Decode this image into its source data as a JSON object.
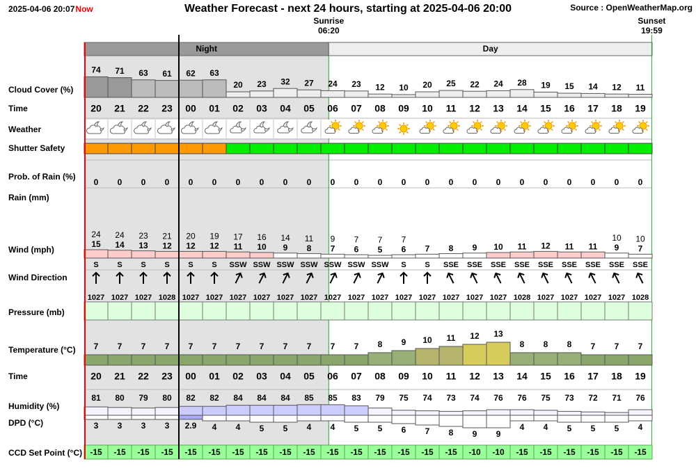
{
  "header": {
    "timestamp": "2025-04-06 20:07",
    "now": "Now",
    "title": "Weather Forecast - next 24 hours, starting at 2025-04-06 20:00",
    "source": "Source : OpenWeatherMap.org"
  },
  "sun": {
    "sunrise_label": "Sunrise",
    "sunrise": "06:20",
    "sunset_label": "Sunset",
    "sunset": "19:59"
  },
  "periods": {
    "night": "Night",
    "day": "Day"
  },
  "labels": {
    "cloud_cover": "Cloud Cover (%)",
    "time": "Time",
    "weather": "Weather",
    "shutter_safety": "Shutter Safety",
    "prob_rain": "Prob. of Rain (%)",
    "rain": "Rain (mm)",
    "wind": "Wind (mph)",
    "wind_direction": "Wind Direction",
    "pressure": "Pressure (mb)",
    "temperature": "Temperature (°C)",
    "time2": "Time",
    "humidity": "Humidity (%)",
    "dpd": "DPD (°C)",
    "ccd": "CCD Set Point (°C)"
  },
  "time": [
    "20",
    "21",
    "22",
    "23",
    "00",
    "01",
    "02",
    "03",
    "04",
    "05",
    "06",
    "07",
    "08",
    "09",
    "10",
    "11",
    "12",
    "13",
    "14",
    "15",
    "16",
    "17",
    "18",
    "19"
  ],
  "cloud_cover": [
    74,
    71,
    63,
    61,
    62,
    63,
    20,
    23,
    32,
    27,
    24,
    23,
    12,
    10,
    20,
    25,
    22,
    24,
    28,
    19,
    15,
    14,
    12,
    11
  ],
  "shutter_safety_colors": [
    "#ff9900",
    "#ff9900",
    "#ff9900",
    "#ff9900",
    "#ff9900",
    "#ff9900",
    "#00ee00",
    "#00ee00",
    "#00ee00",
    "#00ee00",
    "#00ee00",
    "#00ee00",
    "#00ee00",
    "#00ee00",
    "#00ee00",
    "#00ee00",
    "#00ee00",
    "#00ee00",
    "#00ee00",
    "#00ee00",
    "#00ee00",
    "#00ee00",
    "#00ee00",
    "#00ee00"
  ],
  "prob_rain": [
    0,
    0,
    0,
    0,
    0,
    0,
    0,
    0,
    0,
    0,
    0,
    0,
    0,
    0,
    0,
    0,
    0,
    0,
    0,
    0,
    0,
    0,
    0,
    0
  ],
  "wind_gust": [
    24,
    24,
    23,
    21,
    20,
    19,
    17,
    16,
    14,
    11,
    9,
    7,
    7,
    7,
    null,
    null,
    null,
    null,
    null,
    null,
    null,
    null,
    10,
    10
  ],
  "wind_speed": [
    15,
    14,
    13,
    12,
    12,
    12,
    11,
    10,
    9,
    8,
    7,
    6,
    5,
    6,
    7,
    8,
    9,
    10,
    11,
    12,
    11,
    11,
    9,
    7
  ],
  "wind_direction": [
    "S",
    "S",
    "S",
    "S",
    "S",
    "S",
    "SSW",
    "SSW",
    "SSW",
    "SSW",
    "SSW",
    "SSW",
    "SSW",
    "S",
    "S",
    "SSE",
    "SSE",
    "SSE",
    "SSE",
    "SSE",
    "SSE",
    "SSE",
    "SSE",
    "SSE"
  ],
  "pressure": [
    1027,
    1027,
    1027,
    1028,
    1027,
    1027,
    1027,
    1027,
    1027,
    1027,
    1027,
    1027,
    1027,
    1027,
    1027,
    1027,
    1027,
    1027,
    1028,
    1027,
    1027,
    1027,
    1027,
    1028
  ],
  "temperature": [
    7,
    7,
    7,
    7,
    7,
    7,
    7,
    7,
    7,
    7,
    7,
    7,
    8,
    9,
    10,
    11,
    12,
    13,
    8,
    8,
    8,
    7,
    7,
    7
  ],
  "humidity": [
    81,
    80,
    79,
    80,
    82,
    82,
    84,
    84,
    84,
    85,
    85,
    83,
    79,
    75,
    74,
    73,
    74,
    76,
    76,
    75,
    73,
    72,
    71,
    76
  ],
  "dpd": [
    3,
    3,
    3,
    3,
    2.9,
    4,
    4,
    5,
    5,
    4,
    4,
    5,
    5,
    6,
    7,
    8,
    9,
    9,
    4,
    4,
    5,
    5,
    5,
    4
  ],
  "ccd_set_point": [
    -15,
    -15,
    -15,
    -15,
    -15,
    -15,
    -15,
    -15,
    -15,
    -15,
    -15,
    -15,
    -15,
    -15,
    -15,
    -15,
    -10,
    -10,
    -15,
    -15,
    -15,
    -15,
    -15,
    -15
  ]
}
